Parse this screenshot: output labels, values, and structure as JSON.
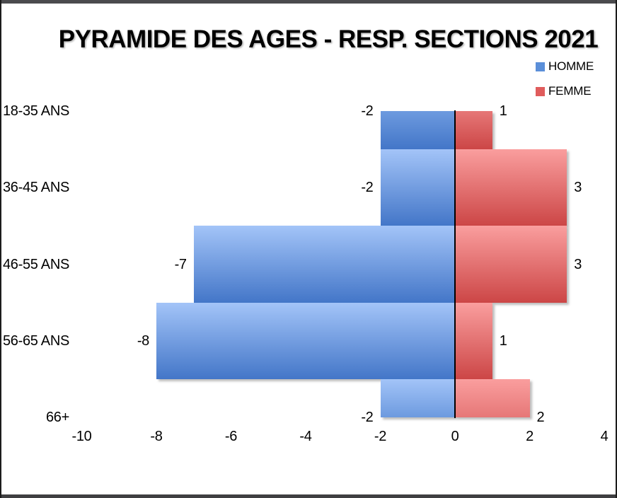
{
  "chart_data": {
    "type": "bar",
    "variant": "population-pyramid-horizontal",
    "title": "PYRAMIDE DES AGES - RESP. SECTIONS 2021",
    "categories": [
      "18-35 ANS",
      "36-45 ANS",
      "46-55 ANS",
      "56-65 ANS",
      "66+"
    ],
    "series": [
      {
        "name": "HOMME",
        "values": [
          -2,
          -2,
          -7,
          -8,
          -2
        ],
        "color": "#5b8fd9",
        "gradient_light": "#a3c4f8",
        "gradient_mid": "#6d9adf",
        "gradient_dark": "#4376c8"
      },
      {
        "name": "FEMME",
        "values": [
          1,
          3,
          3,
          1,
          2
        ],
        "color": "#e05c5c",
        "gradient_light": "#fa9e9e",
        "gradient_mid": "#e67777",
        "gradient_dark": "#cc4646"
      }
    ],
    "x_ticks": [
      "-10",
      "-8",
      "-6",
      "-4",
      "-2",
      "0",
      "2",
      "4"
    ],
    "xlim": [
      -10,
      4
    ],
    "data_labels": true,
    "legend_position": "top-right",
    "grid": false,
    "zero_axis_line": true,
    "axis_color": "#000000",
    "background": "#ffffff"
  }
}
